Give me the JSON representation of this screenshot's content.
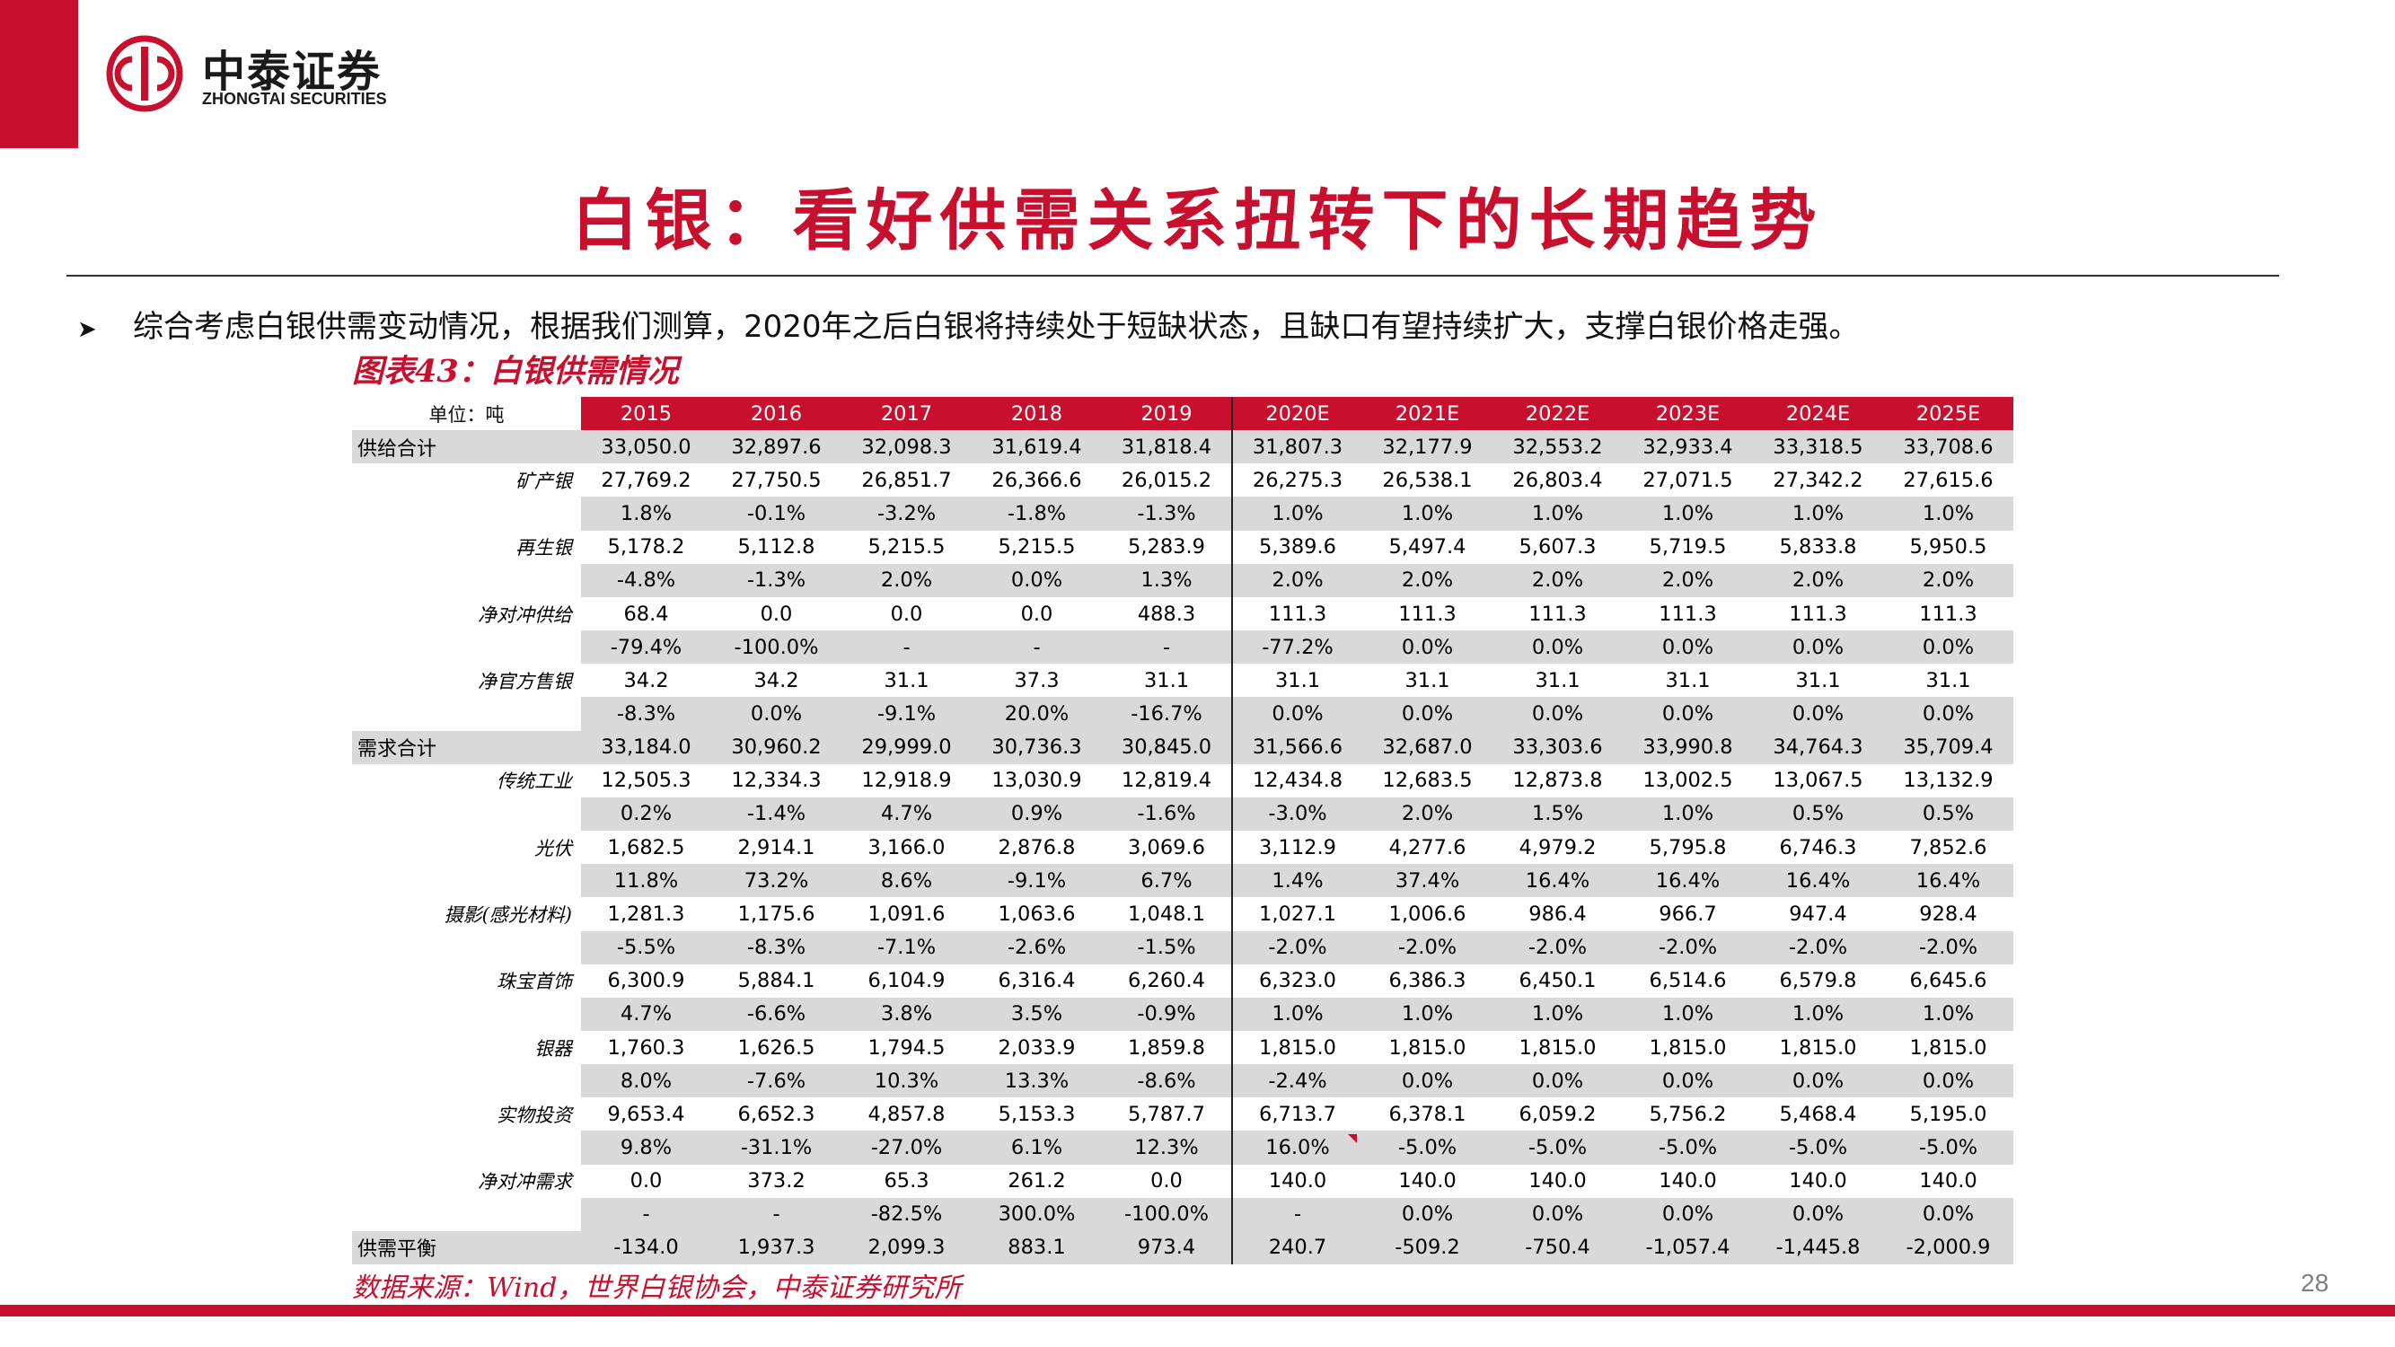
{
  "brand": {
    "name_cn": "中泰证券",
    "name_en": "ZHONGTAI SECURITIES",
    "color": "#c8102e"
  },
  "slide_title": "白银：看好供需关系扭转下的长期趋势",
  "bullet": "综合考虑白银供需变动情况，根据我们测算，2020年之后白银将持续处于短缺状态，且缺口有望持续扩大，支撑白银价格走强。",
  "figure_caption": "图表43：白银供需情况",
  "table": {
    "unit_label": "单位：吨",
    "columns": [
      "2015",
      "2016",
      "2017",
      "2018",
      "2019",
      "2020E",
      "2021E",
      "2022E",
      "2023E",
      "2024E",
      "2025E"
    ],
    "rows": [
      {
        "label": "供给合计",
        "total": true,
        "values": [
          "33,050.0",
          "32,897.6",
          "32,098.3",
          "31,619.4",
          "31,818.4",
          "31,807.3",
          "32,177.9",
          "32,553.2",
          "32,933.4",
          "33,318.5",
          "33,708.6"
        ]
      },
      {
        "label": "矿产银",
        "values": [
          "27,769.2",
          "27,750.5",
          "26,851.7",
          "26,366.6",
          "26,015.2",
          "26,275.3",
          "26,538.1",
          "26,803.4",
          "27,071.5",
          "27,342.2",
          "27,615.6"
        ]
      },
      {
        "label": "",
        "shade": true,
        "values": [
          "1.8%",
          "-0.1%",
          "-3.2%",
          "-1.8%",
          "-1.3%",
          "1.0%",
          "1.0%",
          "1.0%",
          "1.0%",
          "1.0%",
          "1.0%"
        ]
      },
      {
        "label": "再生银",
        "values": [
          "5,178.2",
          "5,112.8",
          "5,215.5",
          "5,215.5",
          "5,283.9",
          "5,389.6",
          "5,497.4",
          "5,607.3",
          "5,719.5",
          "5,833.8",
          "5,950.5"
        ]
      },
      {
        "label": "",
        "shade": true,
        "values": [
          "-4.8%",
          "-1.3%",
          "2.0%",
          "0.0%",
          "1.3%",
          "2.0%",
          "2.0%",
          "2.0%",
          "2.0%",
          "2.0%",
          "2.0%"
        ]
      },
      {
        "label": "净对冲供给",
        "values": [
          "68.4",
          "0.0",
          "0.0",
          "0.0",
          "488.3",
          "111.3",
          "111.3",
          "111.3",
          "111.3",
          "111.3",
          "111.3"
        ]
      },
      {
        "label": "",
        "shade": true,
        "values": [
          "-79.4%",
          "-100.0%",
          "-",
          "-",
          "-",
          "-77.2%",
          "0.0%",
          "0.0%",
          "0.0%",
          "0.0%",
          "0.0%"
        ]
      },
      {
        "label": "净官方售银",
        "values": [
          "34.2",
          "34.2",
          "31.1",
          "37.3",
          "31.1",
          "31.1",
          "31.1",
          "31.1",
          "31.1",
          "31.1",
          "31.1"
        ]
      },
      {
        "label": "",
        "shade": true,
        "values": [
          "-8.3%",
          "0.0%",
          "-9.1%",
          "20.0%",
          "-16.7%",
          "0.0%",
          "0.0%",
          "0.0%",
          "0.0%",
          "0.0%",
          "0.0%"
        ]
      },
      {
        "label": "需求合计",
        "total": true,
        "values": [
          "33,184.0",
          "30,960.2",
          "29,999.0",
          "30,736.3",
          "30,845.0",
          "31,566.6",
          "32,687.0",
          "33,303.6",
          "33,990.8",
          "34,764.3",
          "35,709.4"
        ]
      },
      {
        "label": "传统工业",
        "values": [
          "12,505.3",
          "12,334.3",
          "12,918.9",
          "13,030.9",
          "12,819.4",
          "12,434.8",
          "12,683.5",
          "12,873.8",
          "13,002.5",
          "13,067.5",
          "13,132.9"
        ]
      },
      {
        "label": "",
        "shade": true,
        "values": [
          "0.2%",
          "-1.4%",
          "4.7%",
          "0.9%",
          "-1.6%",
          "-3.0%",
          "2.0%",
          "1.5%",
          "1.0%",
          "0.5%",
          "0.5%"
        ]
      },
      {
        "label": "光伏",
        "values": [
          "1,682.5",
          "2,914.1",
          "3,166.0",
          "2,876.8",
          "3,069.6",
          "3,112.9",
          "4,277.6",
          "4,979.2",
          "5,795.8",
          "6,746.3",
          "7,852.6"
        ]
      },
      {
        "label": "",
        "shade": true,
        "values": [
          "11.8%",
          "73.2%",
          "8.6%",
          "-9.1%",
          "6.7%",
          "1.4%",
          "37.4%",
          "16.4%",
          "16.4%",
          "16.4%",
          "16.4%"
        ]
      },
      {
        "label": "摄影(感光材料)",
        "values": [
          "1,281.3",
          "1,175.6",
          "1,091.6",
          "1,063.6",
          "1,048.1",
          "1,027.1",
          "1,006.6",
          "986.4",
          "966.7",
          "947.4",
          "928.4"
        ]
      },
      {
        "label": "",
        "shade": true,
        "values": [
          "-5.5%",
          "-8.3%",
          "-7.1%",
          "-2.6%",
          "-1.5%",
          "-2.0%",
          "-2.0%",
          "-2.0%",
          "-2.0%",
          "-2.0%",
          "-2.0%"
        ]
      },
      {
        "label": "珠宝首饰",
        "values": [
          "6,300.9",
          "5,884.1",
          "6,104.9",
          "6,316.4",
          "6,260.4",
          "6,323.0",
          "6,386.3",
          "6,450.1",
          "6,514.6",
          "6,579.8",
          "6,645.6"
        ]
      },
      {
        "label": "",
        "shade": true,
        "values": [
          "4.7%",
          "-6.6%",
          "3.8%",
          "3.5%",
          "-0.9%",
          "1.0%",
          "1.0%",
          "1.0%",
          "1.0%",
          "1.0%",
          "1.0%"
        ]
      },
      {
        "label": "银器",
        "values": [
          "1,760.3",
          "1,626.5",
          "1,794.5",
          "2,033.9",
          "1,859.8",
          "1,815.0",
          "1,815.0",
          "1,815.0",
          "1,815.0",
          "1,815.0",
          "1,815.0"
        ]
      },
      {
        "label": "",
        "shade": true,
        "values": [
          "8.0%",
          "-7.6%",
          "10.3%",
          "13.3%",
          "-8.6%",
          "-2.4%",
          "0.0%",
          "0.0%",
          "0.0%",
          "0.0%",
          "0.0%"
        ]
      },
      {
        "label": "实物投资",
        "values": [
          "9,653.4",
          "6,652.3",
          "4,857.8",
          "5,153.3",
          "5,787.7",
          "6,713.7",
          "6,378.1",
          "6,059.2",
          "5,756.2",
          "5,468.4",
          "5,195.0"
        ]
      },
      {
        "label": "",
        "shade": true,
        "values": [
          "9.8%",
          "-31.1%",
          "-27.0%",
          "6.1%",
          "12.3%",
          "16.0%",
          "-5.0%",
          "-5.0%",
          "-5.0%",
          "-5.0%",
          "-5.0%"
        ]
      },
      {
        "label": "净对冲需求",
        "values": [
          "0.0",
          "373.2",
          "65.3",
          "261.2",
          "0.0",
          "140.0",
          "140.0",
          "140.0",
          "140.0",
          "140.0",
          "140.0"
        ]
      },
      {
        "label": "",
        "shade": true,
        "values": [
          "-",
          "-",
          "-82.5%",
          "300.0%",
          "-100.0%",
          "-",
          "0.0%",
          "0.0%",
          "0.0%",
          "0.0%",
          "0.0%"
        ]
      },
      {
        "label": "供需平衡",
        "total": true,
        "values": [
          "-134.0",
          "1,937.3",
          "2,099.3",
          "883.1",
          "973.4",
          "240.7",
          "-509.2",
          "-750.4",
          "-1,057.4",
          "-1,445.8",
          "-2,000.9"
        ]
      }
    ]
  },
  "source_note": "数据来源：Wind，世界白银协会，中泰证券研究所",
  "page_number": "28"
}
